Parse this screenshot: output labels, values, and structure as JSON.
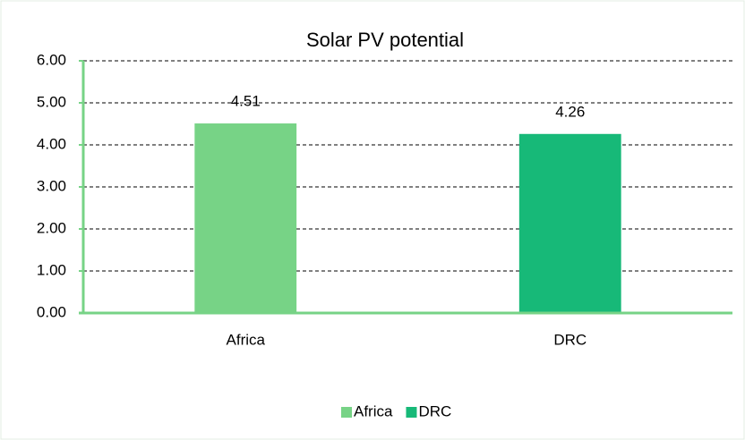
{
  "chart_data": {
    "type": "bar",
    "title": "Solar PV potential",
    "categories": [
      "Africa",
      "DRC"
    ],
    "values": [
      4.51,
      4.26
    ],
    "colors": [
      "#77d386",
      "#17b978"
    ],
    "ylim": [
      0,
      6
    ],
    "yticks": [
      {
        "value": 0,
        "label": "0.00"
      },
      {
        "value": 1,
        "label": "1.00"
      },
      {
        "value": 2,
        "label": "2.00"
      },
      {
        "value": 3,
        "label": "3.00"
      },
      {
        "value": 4,
        "label": "4.00"
      },
      {
        "value": 5,
        "label": "5.00"
      },
      {
        "value": 6,
        "label": "6.00"
      }
    ],
    "grid": true,
    "legend": "bottom"
  }
}
